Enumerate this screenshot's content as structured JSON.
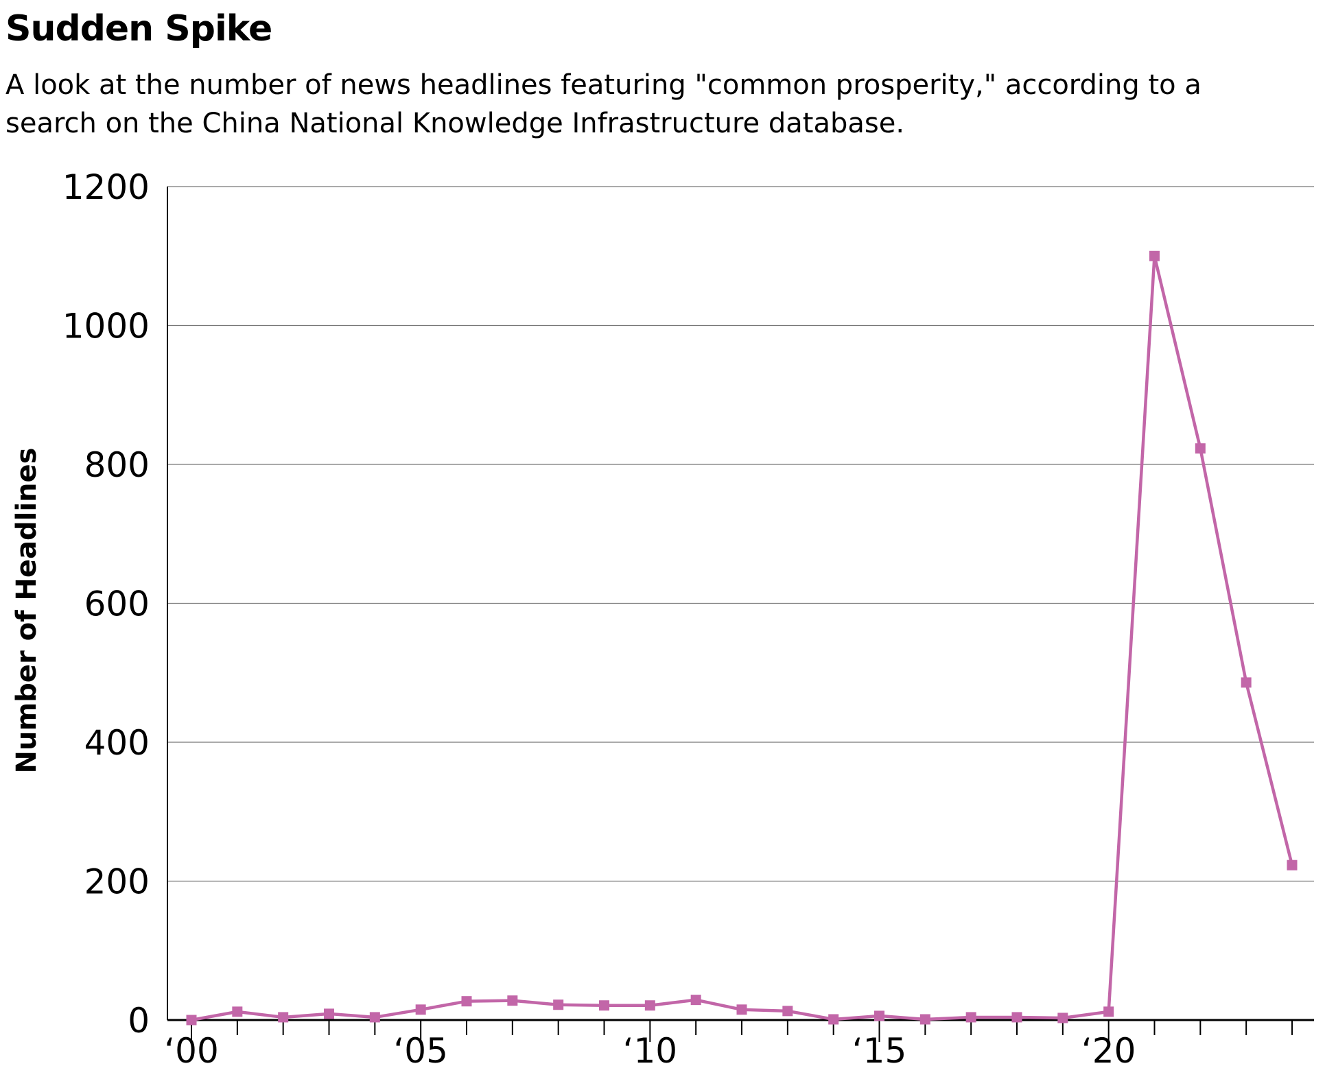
{
  "chart_data": {
    "type": "line",
    "title": "Sudden Spike",
    "subtitle": "A look at the number of news headlines featuring \"common prosperity,\" according to a search on the China National Knowledge Infrastructure database.",
    "xlabel": "",
    "ylabel": "Number of Headlines",
    "ylim": [
      0,
      1200
    ],
    "yticks": [
      0,
      200,
      400,
      600,
      800,
      1000,
      1200
    ],
    "xlim": [
      2000,
      2024
    ],
    "xtick_labels": [
      {
        "x": 2000,
        "label": "‘00"
      },
      {
        "x": 2005,
        "label": "‘05"
      },
      {
        "x": 2010,
        "label": "‘10"
      },
      {
        "x": 2015,
        "label": "‘15"
      },
      {
        "x": 2020,
        "label": "‘20"
      }
    ],
    "grid": "horizontal",
    "color": "#c266a8",
    "marker": "square",
    "x": [
      2000,
      2001,
      2002,
      2003,
      2004,
      2005,
      2006,
      2007,
      2008,
      2009,
      2010,
      2011,
      2012,
      2013,
      2014,
      2015,
      2016,
      2017,
      2018,
      2019,
      2020,
      2021,
      2022,
      2023,
      2024
    ],
    "values": [
      0,
      12,
      4,
      9,
      4,
      15,
      27,
      28,
      22,
      21,
      21,
      29,
      15,
      13,
      1,
      6,
      1,
      4,
      4,
      3,
      12,
      1100,
      823,
      486,
      223
    ]
  }
}
